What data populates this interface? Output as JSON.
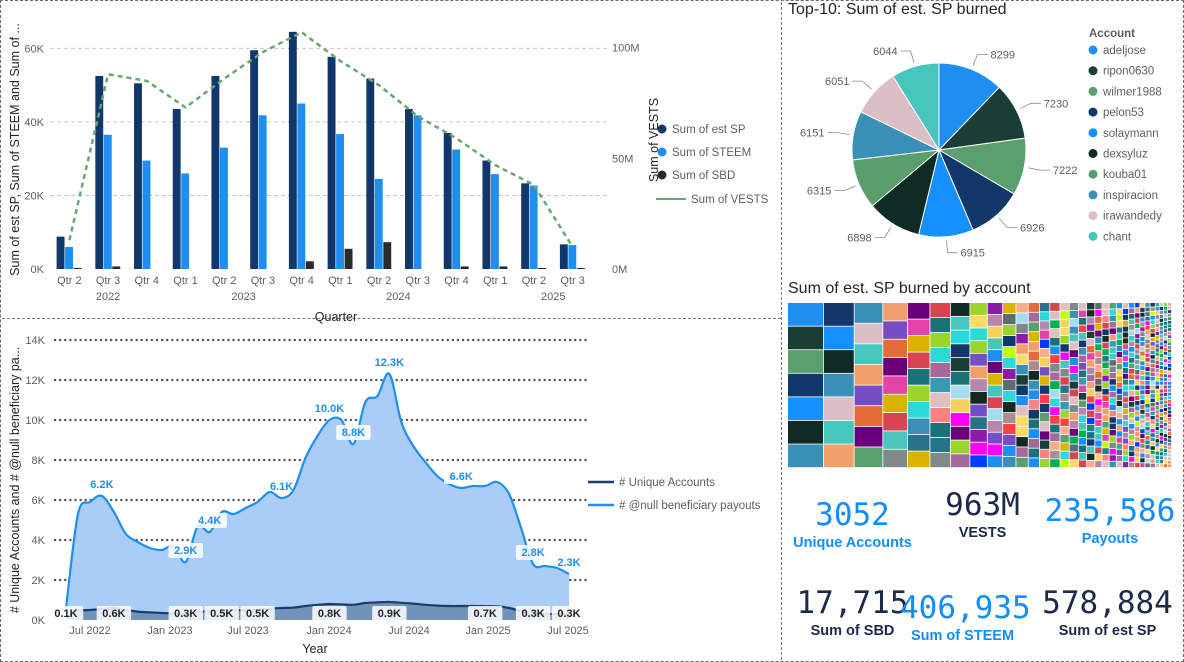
{
  "bar_chart": {
    "ylabel": "Sum of est SP, Sum of STEEM and Sum of ...",
    "y2label": "Sum of VESTS",
    "xlabel": "Quarter",
    "y_ticks": [
      "0K",
      "20K",
      "40K",
      "60K"
    ],
    "y2_ticks": [
      "0M",
      "50M",
      "100M"
    ],
    "quarters": [
      "Qtr 2",
      "Qtr 3",
      "Qtr 4",
      "Qtr 1",
      "Qtr 2",
      "Qtr 3",
      "Qtr 4",
      "Qtr 1",
      "Qtr 2",
      "Qtr 3",
      "Qtr 4",
      "Qtr 1",
      "Qtr 2",
      "Qtr 3"
    ],
    "years": [
      {
        "label": "2022",
        "index": 1
      },
      {
        "label": "2023",
        "index": 4.5
      },
      {
        "label": "2024",
        "index": 8.5
      },
      {
        "label": "2025",
        "index": 12.5
      }
    ],
    "legend": [
      "Sum of est SP",
      "Sum of STEEM",
      "Sum of SBD",
      "Sum of VESTS"
    ],
    "colors": {
      "est_sp": "#12376b",
      "steem": "#1f8ef1",
      "sbd": "#2b2b2b",
      "vests": "#6aa675"
    }
  },
  "line_chart": {
    "ylabel": "# Unique Accounts and # @null beneficiary pa...",
    "xlabel": "Year",
    "y_ticks": [
      "0K",
      "2K",
      "4K",
      "6K",
      "8K",
      "10K",
      "12K",
      "14K"
    ],
    "x_ticks": [
      "Jul 2022",
      "Jan 2023",
      "Jul 2023",
      "Jan 2024",
      "Jul 2024",
      "Jan 2025",
      "Jul 2025"
    ],
    "legend": [
      "# Unique Accounts",
      "# @null beneficiary payouts"
    ],
    "payout_labels": [
      {
        "i": 3,
        "text": "6.2K",
        "box": false
      },
      {
        "i": 10,
        "text": "2.9K",
        "box": true
      },
      {
        "i": 12,
        "text": "4.4K",
        "box": true
      },
      {
        "i": 18,
        "text": "6.1K",
        "box": false
      },
      {
        "i": 22,
        "text": "10.0K",
        "box": false
      },
      {
        "i": 24,
        "text": "8.8K",
        "box": true
      },
      {
        "i": 27,
        "text": "12.3K",
        "box": false
      },
      {
        "i": 33,
        "text": "6.6K",
        "box": true
      },
      {
        "i": 39,
        "text": "2.8K",
        "box": true
      },
      {
        "i": 42,
        "text": "2.3K",
        "box": false
      }
    ],
    "account_labels": [
      {
        "i": 0,
        "text": "0.1K"
      },
      {
        "i": 4,
        "text": "0.6K"
      },
      {
        "i": 10,
        "text": "0.3K"
      },
      {
        "i": 13,
        "text": "0.5K"
      },
      {
        "i": 16,
        "text": "0.5K"
      },
      {
        "i": 22,
        "text": "0.8K"
      },
      {
        "i": 27,
        "text": "0.9K"
      },
      {
        "i": 35,
        "text": "0.7K"
      },
      {
        "i": 39,
        "text": "0.3K"
      },
      {
        "i": 42,
        "text": "0.3K"
      }
    ]
  },
  "pie": {
    "title": "Top-10: Sum of est. SP burned",
    "legend_title": "Account"
  },
  "treemap": {
    "title": "Sum of est. SP burned by account"
  },
  "kpis": [
    {
      "value": "3052",
      "label": "Unique Accounts"
    },
    {
      "value": "963M",
      "label": "VESTS"
    },
    {
      "value": "235,586",
      "label": "Payouts"
    },
    {
      "value": "17,715",
      "label": "Sum of SBD"
    },
    {
      "value": "406,935",
      "label": "Sum of STEEM"
    },
    {
      "value": "578,884",
      "label": "Sum of est SP"
    }
  ],
  "chart_data": [
    {
      "type": "bar",
      "title": "",
      "xlabel": "Quarter",
      "ylabel": "Sum of est SP, Sum of STEEM and Sum of ...",
      "y2label": "Sum of VESTS",
      "categories": [
        "2022 Qtr 2",
        "2022 Qtr 3",
        "2022 Qtr 4",
        "2023 Qtr 1",
        "2023 Qtr 2",
        "2023 Qtr 3",
        "2023 Qtr 4",
        "2024 Qtr 1",
        "2024 Qtr 2",
        "2024 Qtr 3",
        "2024 Qtr 4",
        "2025 Qtr 1",
        "2025 Qtr 2",
        "2025 Qtr 3"
      ],
      "ylim": [
        0,
        65000
      ],
      "y2lim": [
        0,
        108000000
      ],
      "series": [
        {
          "name": "Sum of est SP",
          "values": [
            8800,
            52500,
            50500,
            43500,
            52500,
            59500,
            64500,
            57700,
            51800,
            43500,
            37000,
            29500,
            23300,
            6700
          ]
        },
        {
          "name": "Sum of STEEM",
          "values": [
            6000,
            36500,
            29500,
            26000,
            33000,
            41800,
            45000,
            36700,
            24500,
            41800,
            32500,
            25800,
            22700,
            6500
          ]
        },
        {
          "name": "Sum of SBD",
          "values": [
            300,
            700,
            0,
            0,
            0,
            0,
            2100,
            5500,
            7300,
            0,
            700,
            700,
            100,
            100
          ]
        },
        {
          "name": "Sum of VESTS",
          "axis": "secondary",
          "values": [
            13000000,
            88000000,
            85000000,
            73000000,
            86000000,
            98000000,
            107000000,
            94000000,
            83000000,
            69000000,
            59000000,
            47000000,
            38000000,
            10000000
          ]
        }
      ],
      "grid": true,
      "legend": "right"
    },
    {
      "type": "area",
      "title": "",
      "xlabel": "Year",
      "ylabel": "# Unique Accounts and # @null beneficiary pa...",
      "x_range": [
        "Apr 2022",
        "Jul 2025"
      ],
      "ylim": [
        0,
        14000
      ],
      "series": [
        {
          "name": "# @null beneficiary payouts",
          "values": [
            600,
            5300,
            5900,
            6200,
            5400,
            4300,
            3900,
            3600,
            3500,
            3700,
            2900,
            4700,
            4400,
            5400,
            5300,
            5600,
            5900,
            6400,
            6100,
            6500,
            8100,
            9200,
            10000,
            10000,
            8800,
            10900,
            11200,
            12300,
            9900,
            8700,
            7900,
            7200,
            6800,
            6600,
            6700,
            6700,
            6900,
            6300,
            4600,
            2800,
            2700,
            2600,
            2300
          ]
        },
        {
          "name": "# Unique Accounts",
          "values": [
            100,
            450,
            500,
            550,
            600,
            500,
            420,
            380,
            350,
            330,
            300,
            400,
            450,
            480,
            500,
            480,
            500,
            560,
            600,
            620,
            700,
            760,
            800,
            780,
            760,
            850,
            880,
            900,
            860,
            820,
            760,
            720,
            700,
            700,
            700,
            690,
            680,
            600,
            450,
            330,
            310,
            300,
            300
          ]
        }
      ],
      "grid": true,
      "legend": "right"
    },
    {
      "type": "pie",
      "title": "Top-10: Sum of est. SP burned",
      "legend_title": "Account",
      "categories": [
        "adeljose",
        "ripon0630",
        "wilmer1988",
        "pelon53",
        "solaymann",
        "dexsyluz",
        "kouba01",
        "inspiracion",
        "irawandedy",
        "chant"
      ],
      "values": [
        8299,
        7230,
        7222,
        6926,
        6915,
        6898,
        6315,
        6151,
        6051,
        6044
      ],
      "colors": [
        "#1f8ef1",
        "#1b3d38",
        "#5aa06e",
        "#12376b",
        "#1491ff",
        "#102a24",
        "#5a9e6e",
        "#3a8fb7",
        "#dcbfc4",
        "#47c6bd"
      ],
      "legend": "right"
    },
    {
      "type": "treemap",
      "title": "Sum of est. SP burned by account"
    }
  ]
}
